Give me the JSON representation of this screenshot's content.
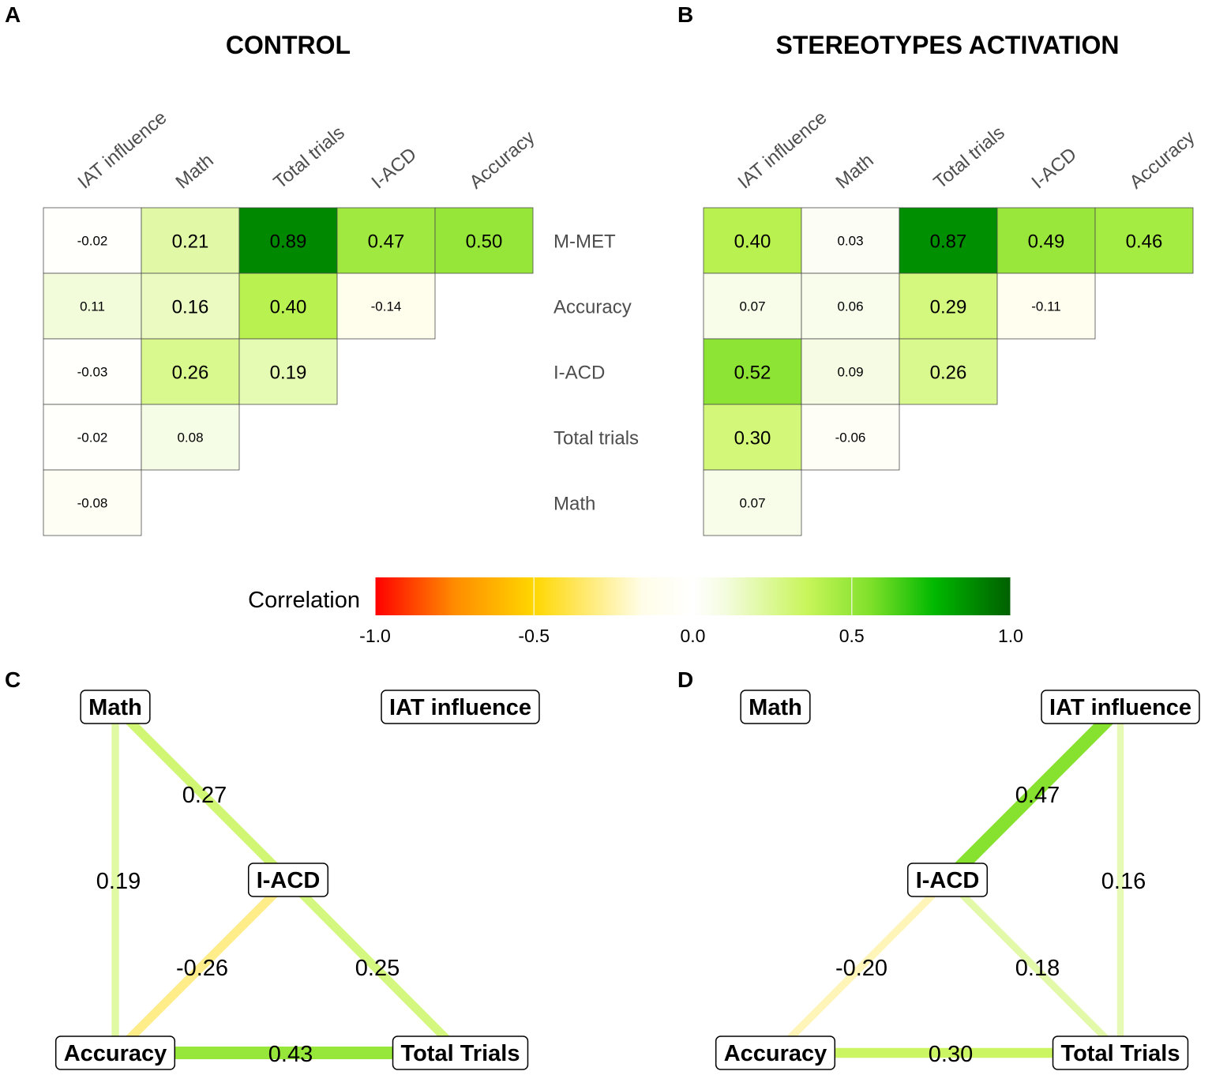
{
  "panels": {
    "A": {
      "letter": "A",
      "title": "CONTROL"
    },
    "B": {
      "letter": "B",
      "title": "STEREOTYPES ACTIVATION"
    },
    "C": {
      "letter": "C"
    },
    "D": {
      "letter": "D"
    }
  },
  "legend": {
    "title": "Correlation",
    "ticks": [
      "-1.0",
      "-0.5",
      "0.0",
      "0.5",
      "1.0"
    ],
    "tick_values": [
      -1.0,
      -0.5,
      0.0,
      0.5,
      1.0
    ],
    "colors": [
      "#ff0000",
      "#ff8c00",
      "#ffd700",
      "#fffde8",
      "#ffffff",
      "#f4fce0",
      "#c8f55a",
      "#7fe02a",
      "#00b800",
      "#005f00"
    ]
  },
  "chart_data": [
    {
      "type": "heatmap",
      "panel": "A",
      "title": "CONTROL",
      "columns": [
        "IAT influence",
        "Math",
        "Total trials",
        "I-ACD",
        "Accuracy"
      ],
      "rows": [
        {
          "label": "M-MET",
          "values": [
            -0.02,
            0.21,
            0.89,
            0.47,
            0.5
          ]
        },
        {
          "label": "Accuracy",
          "values": [
            0.11,
            0.16,
            0.4,
            -0.14
          ]
        },
        {
          "label": "I-ACD",
          "values": [
            -0.03,
            0.26,
            0.19
          ]
        },
        {
          "label": "Total trials",
          "values": [
            -0.02,
            0.08
          ]
        },
        {
          "label": "Math",
          "values": [
            -0.08
          ]
        }
      ],
      "color_range": [
        -1.0,
        1.0
      ]
    },
    {
      "type": "heatmap",
      "panel": "B",
      "title": "STEREOTYPES ACTIVATION",
      "columns": [
        "IAT influence",
        "Math",
        "Total trials",
        "I-ACD",
        "Accuracy"
      ],
      "rows": [
        {
          "label": "M-MET",
          "values": [
            0.4,
            0.03,
            0.87,
            0.49,
            0.46
          ]
        },
        {
          "label": "Accuracy",
          "values": [
            0.07,
            0.06,
            0.29,
            -0.11
          ]
        },
        {
          "label": "I-ACD",
          "values": [
            0.52,
            0.09,
            0.26
          ]
        },
        {
          "label": "Total trials",
          "values": [
            0.3,
            -0.06
          ]
        },
        {
          "label": "Math",
          "values": [
            0.07
          ]
        }
      ],
      "color_range": [
        -1.0,
        1.0
      ]
    },
    {
      "type": "network",
      "panel": "C",
      "nodes": [
        "Math",
        "IAT influence",
        "I-ACD",
        "Accuracy",
        "Total Trials"
      ],
      "edges": [
        {
          "from": "Math",
          "to": "I-ACD",
          "weight": 0.27,
          "label": "0.27"
        },
        {
          "from": "Math",
          "to": "Accuracy",
          "weight": 0.19,
          "label": "0.19"
        },
        {
          "from": "I-ACD",
          "to": "Accuracy",
          "weight": -0.26,
          "label": "-0.26"
        },
        {
          "from": "I-ACD",
          "to": "Total Trials",
          "weight": 0.25,
          "label": "0.25"
        },
        {
          "from": "Accuracy",
          "to": "Total Trials",
          "weight": 0.43,
          "label": "0.43"
        }
      ]
    },
    {
      "type": "network",
      "panel": "D",
      "nodes": [
        "Math",
        "IAT influence",
        "I-ACD",
        "Accuracy",
        "Total Trials"
      ],
      "edges": [
        {
          "from": "IAT influence",
          "to": "I-ACD",
          "weight": 0.47,
          "label": "0.47"
        },
        {
          "from": "IAT influence",
          "to": "Total Trials",
          "weight": 0.16,
          "label": "0.16"
        },
        {
          "from": "I-ACD",
          "to": "Accuracy",
          "weight": -0.2,
          "label": "-0.20"
        },
        {
          "from": "I-ACD",
          "to": "Total Trials",
          "weight": 0.18,
          "label": "0.18"
        },
        {
          "from": "Accuracy",
          "to": "Total Trials",
          "weight": 0.3,
          "label": "0.30"
        }
      ]
    }
  ]
}
